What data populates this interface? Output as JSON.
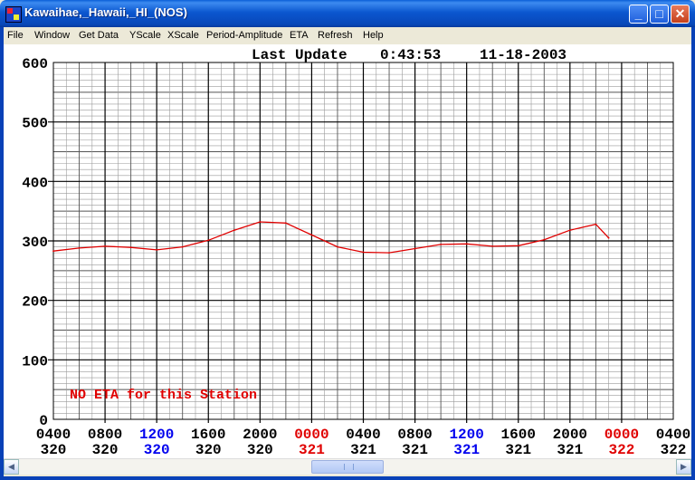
{
  "window": {
    "title": "Kawaihae,_Hawaii,_HI_(NOS)",
    "minimize_glyph": "_",
    "maximize_glyph": "□",
    "close_glyph": "✕"
  },
  "menu": [
    "File",
    "Window",
    "Get Data",
    "YScale",
    "XScale",
    "Period-Amplitude",
    "ETA",
    "Refresh",
    "Help"
  ],
  "header": {
    "last_update_label": "Last Update",
    "time": "0:43:53",
    "date": "11-18-2003"
  },
  "notice": "NO ETA for this Station",
  "colors": {
    "series": "#e00000",
    "noon": "#0000ee",
    "midnight": "#e00000",
    "normal_tick": "#000000",
    "grid_major": "#000000",
    "grid_minor": "#9a9a9a"
  },
  "chart_data": {
    "type": "line",
    "ylim": [
      0,
      600
    ],
    "y_ticks": [
      "0",
      "100",
      "200",
      "300",
      "400",
      "500",
      "600"
    ],
    "x_ticks": [
      {
        "time": "0400",
        "day": "320",
        "style": "normal"
      },
      {
        "time": "0800",
        "day": "320",
        "style": "normal"
      },
      {
        "time": "1200",
        "day": "320",
        "style": "noon"
      },
      {
        "time": "1600",
        "day": "320",
        "style": "normal"
      },
      {
        "time": "2000",
        "day": "320",
        "style": "normal"
      },
      {
        "time": "0000",
        "day": "321",
        "style": "midnight"
      },
      {
        "time": "0400",
        "day": "321",
        "style": "normal"
      },
      {
        "time": "0800",
        "day": "321",
        "style": "normal"
      },
      {
        "time": "1200",
        "day": "321",
        "style": "noon"
      },
      {
        "time": "1600",
        "day": "321",
        "style": "normal"
      },
      {
        "time": "2000",
        "day": "321",
        "style": "normal"
      },
      {
        "time": "0000",
        "day": "322",
        "style": "midnight"
      },
      {
        "time": "0400",
        "day": "322",
        "style": "normal"
      }
    ],
    "x_hours": [
      0,
      2,
      4,
      6,
      8,
      10,
      12,
      14,
      16,
      18,
      20,
      22,
      24,
      26,
      28,
      30,
      32,
      34,
      36,
      38,
      40,
      42,
      43
    ],
    "series": [
      {
        "values": [
          283,
          288,
          291,
          289,
          285,
          290,
          301,
          318,
          332,
          330,
          310,
          290,
          281,
          280,
          287,
          294,
          295,
          291,
          292,
          302,
          318,
          328,
          305
        ]
      }
    ]
  }
}
